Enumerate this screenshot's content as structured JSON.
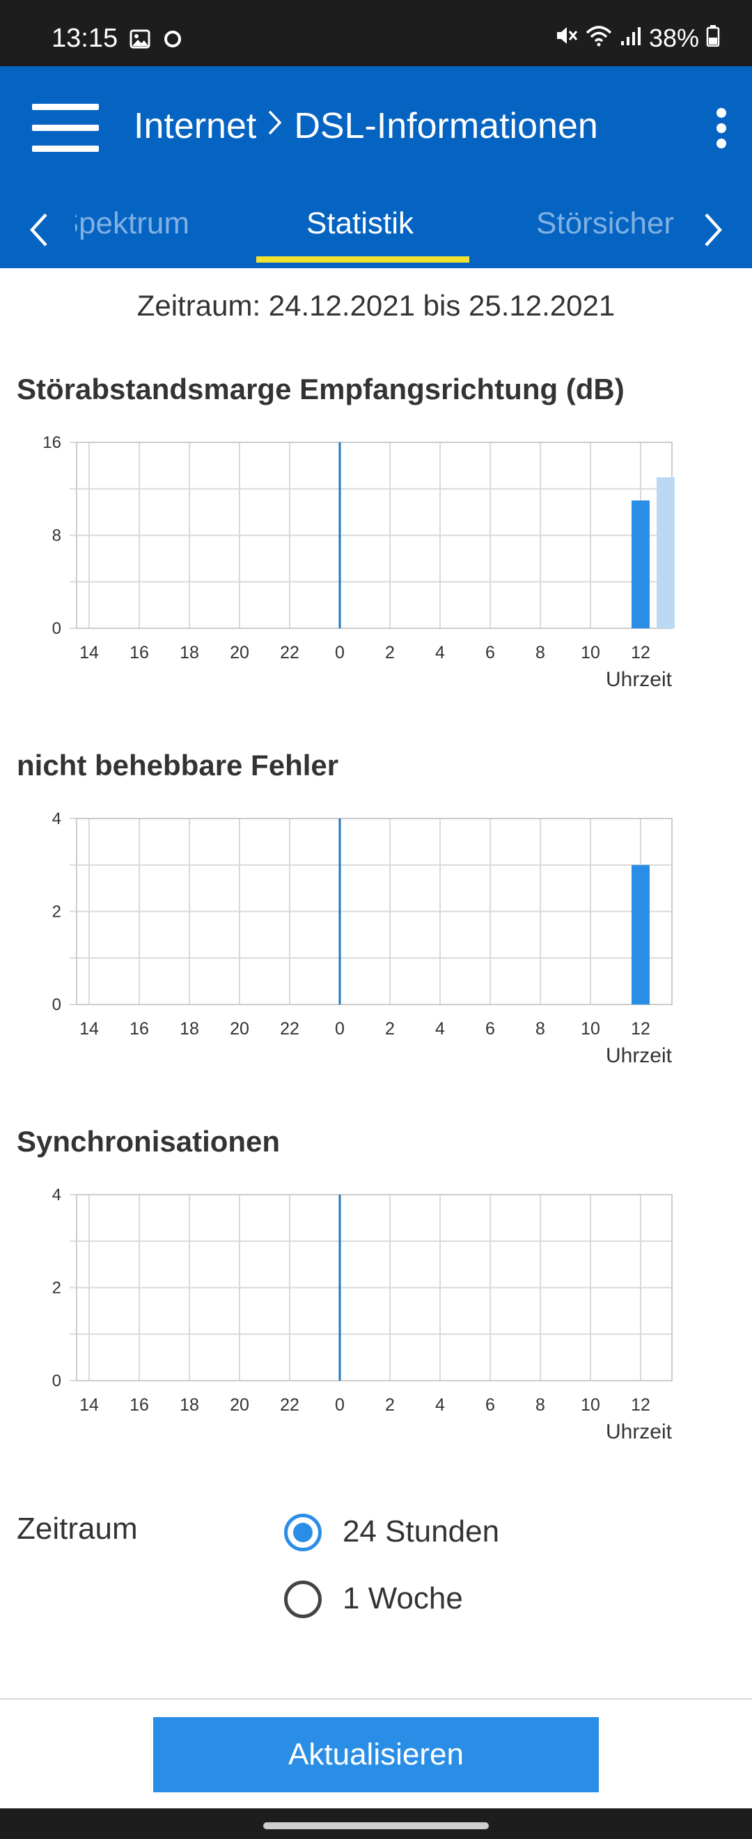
{
  "status_bar": {
    "time": "13:15",
    "battery": "38%",
    "icons": [
      "image-icon",
      "circle-icon",
      "mute-icon",
      "wifi-icon",
      "signal-icon",
      "battery-icon"
    ]
  },
  "header": {
    "crumb_parent": "Internet",
    "crumb_current": "DSL-Informationen",
    "menu_icon": "hamburger-icon",
    "more_icon": "more-vertical-icon"
  },
  "tabs": {
    "prev_partial": "Spektrum",
    "active": "Statistik",
    "next_partial": "Störsicherheit"
  },
  "period_text": "Zeitraum: 24.12.2021 bis 25.12.2021",
  "colors": {
    "app_bar": "#0563c1",
    "tab_indicator": "#f2e232",
    "bar": "#2b8ee6",
    "bar_light": "#bcd9f3",
    "midnight_line": "#1f77c2"
  },
  "chart_data": [
    {
      "type": "bar",
      "title": "Störabstandsmarge Empfangsrichtung (dB)",
      "xlabel": "Uhrzeit",
      "x_ticks": [
        "14",
        "16",
        "18",
        "20",
        "22",
        "0",
        "2",
        "4",
        "6",
        "8",
        "10",
        "12"
      ],
      "y_ticks": [
        "0",
        "8",
        "16"
      ],
      "ylim": [
        0,
        16
      ],
      "x_range_hours": [
        13.5,
        37.25
      ],
      "midnight_marker": 24,
      "bars": [
        {
          "hour": 36,
          "value": 11,
          "style": "dark"
        },
        {
          "hour": 37,
          "value": 13,
          "style": "light"
        }
      ],
      "grid": true
    },
    {
      "type": "bar",
      "title": "nicht behebbare Fehler",
      "xlabel": "Uhrzeit",
      "x_ticks": [
        "14",
        "16",
        "18",
        "20",
        "22",
        "0",
        "2",
        "4",
        "6",
        "8",
        "10",
        "12"
      ],
      "y_ticks": [
        "0",
        "2",
        "4"
      ],
      "ylim": [
        0,
        4
      ],
      "x_range_hours": [
        13.5,
        37.25
      ],
      "midnight_marker": 24,
      "bars": [
        {
          "hour": 36,
          "value": 3,
          "style": "dark"
        }
      ],
      "grid": true
    },
    {
      "type": "bar",
      "title": "Synchronisationen",
      "xlabel": "Uhrzeit",
      "x_ticks": [
        "14",
        "16",
        "18",
        "20",
        "22",
        "0",
        "2",
        "4",
        "6",
        "8",
        "10",
        "12"
      ],
      "y_ticks": [
        "0",
        "2",
        "4"
      ],
      "ylim": [
        0,
        4
      ],
      "x_range_hours": [
        13.5,
        37.25
      ],
      "midnight_marker": 24,
      "bars": [],
      "grid": true
    }
  ],
  "form": {
    "label": "Zeitraum",
    "options": [
      {
        "label": "24 Stunden",
        "selected": true
      },
      {
        "label": "1 Woche",
        "selected": false
      }
    ]
  },
  "footer": {
    "button_label": "Aktualisieren"
  }
}
